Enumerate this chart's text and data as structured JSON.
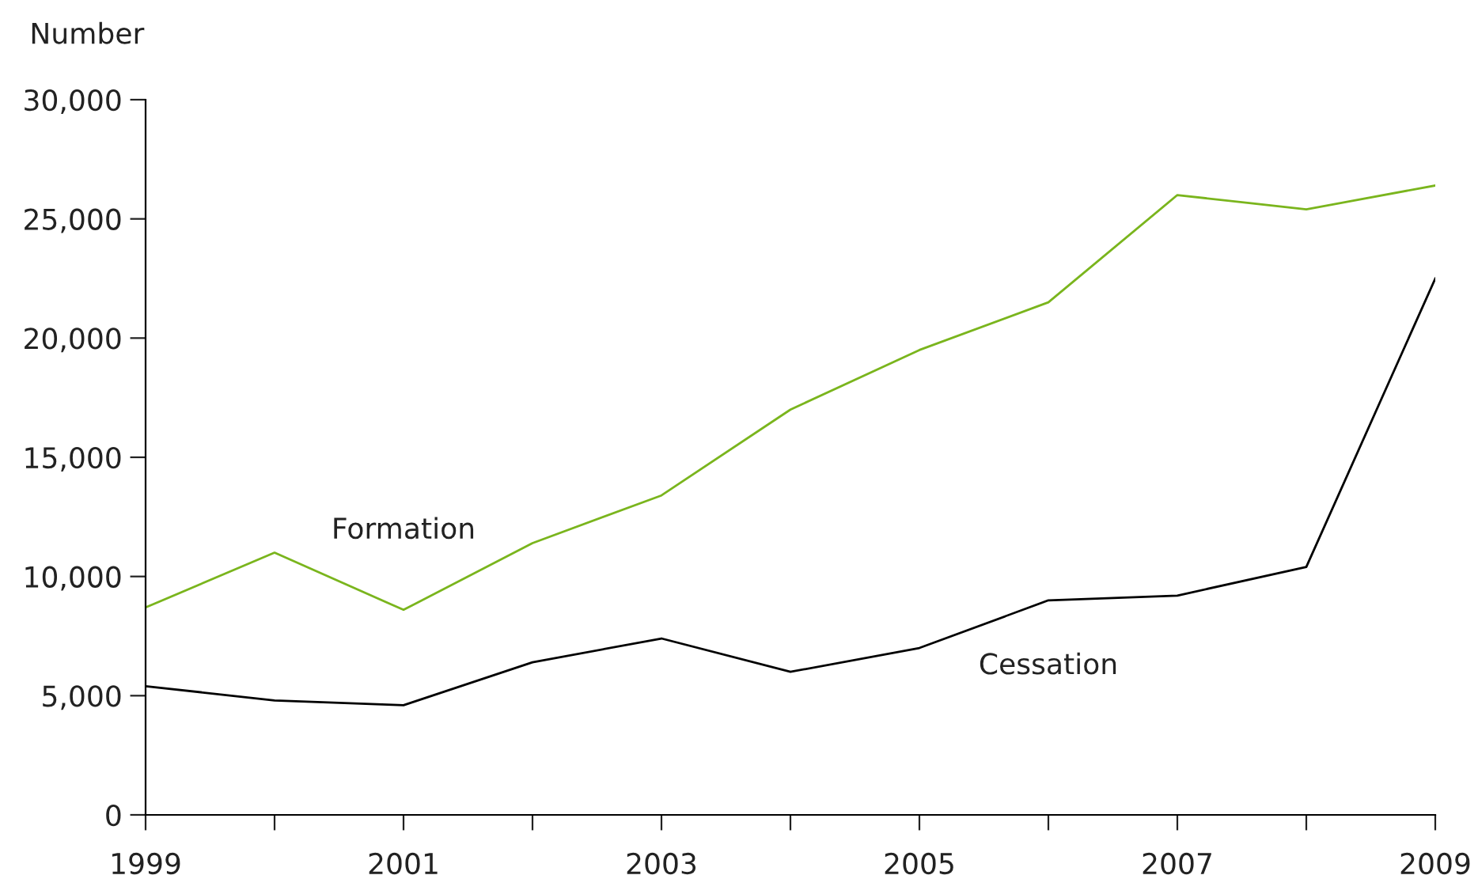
{
  "chart_data": {
    "type": "line",
    "ylabel": "Number",
    "x": [
      1999,
      2000,
      2001,
      2002,
      2003,
      2004,
      2005,
      2006,
      2007,
      2008,
      2009
    ],
    "series": [
      {
        "name": "Formation",
        "color": "#7ab51d",
        "values": [
          8700,
          11000,
          8600,
          11400,
          13400,
          17000,
          19500,
          21500,
          26000,
          25400,
          26400
        ]
      },
      {
        "name": "Cessation",
        "color": "#000000",
        "values": [
          5400,
          4800,
          4600,
          6400,
          7400,
          6000,
          7000,
          9000,
          9200,
          10400,
          22500
        ]
      }
    ],
    "xlim": [
      1999,
      2009
    ],
    "xticks": [
      1999,
      {
        "value": 2000,
        "label": null
      },
      2001,
      {
        "value": 2002,
        "label": null
      },
      2003,
      {
        "value": 2004,
        "label": null
      },
      2005,
      {
        "value": 2006,
        "label": null
      },
      2007,
      {
        "value": 2008,
        "label": null
      },
      2009
    ],
    "ylim": [
      0,
      30000
    ],
    "yticks": [
      {
        "value": 0,
        "label": "0"
      },
      {
        "value": 5000,
        "label": "5,000"
      },
      {
        "value": 10000,
        "label": "10,000"
      },
      {
        "value": 15000,
        "label": "15,000"
      },
      {
        "value": 20000,
        "label": "20,000"
      },
      {
        "value": 25000,
        "label": "25,000"
      },
      {
        "value": 30000,
        "label": "30,000"
      }
    ],
    "grid": false,
    "legend": false,
    "marker": "none",
    "line_style": "solid"
  }
}
